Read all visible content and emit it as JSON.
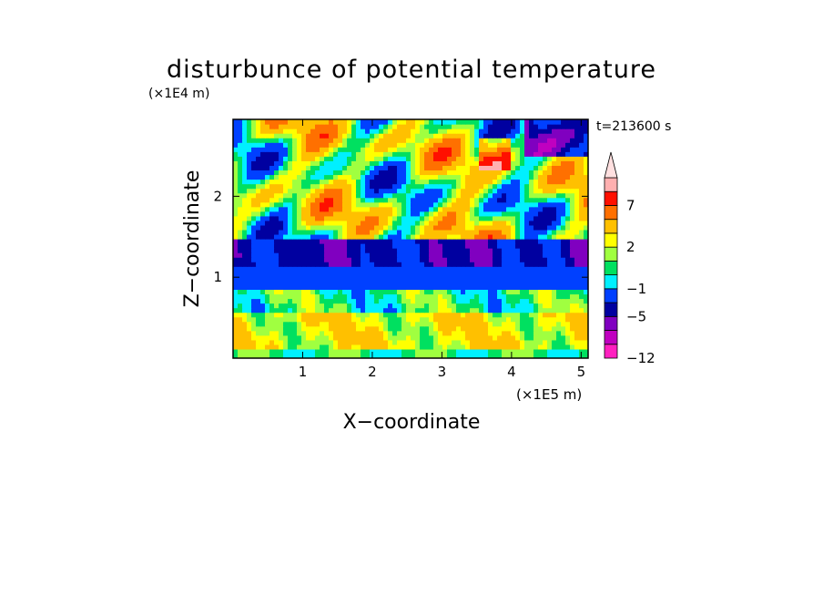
{
  "chart_data": {
    "type": "heatmap",
    "title": "disturbunce of potential temperature",
    "time_label": "t=213600 s",
    "xlabel": "X−coordinate",
    "ylabel": "Z−coordinate",
    "x_unit": "(×1E5 m)",
    "y_unit": "(×1E4 m)",
    "xlim": [
      0,
      5.1
    ],
    "ylim": [
      0,
      2.95
    ],
    "x_ticks": [
      {
        "value": 1,
        "label": "1"
      },
      {
        "value": 2,
        "label": "2"
      },
      {
        "value": 3,
        "label": "3"
      },
      {
        "value": 4,
        "label": "4"
      },
      {
        "value": 5,
        "label": "5"
      }
    ],
    "y_ticks": [
      {
        "value": 1,
        "label": "1"
      },
      {
        "value": 2,
        "label": "2"
      }
    ],
    "colorbar": {
      "levels": [
        -12,
        -9,
        -7,
        -5,
        -3,
        -1,
        0,
        1,
        2,
        3,
        5,
        7,
        9,
        11
      ],
      "colors": [
        "#ff20c0",
        "#c000c0",
        "#8000c0",
        "#0000a0",
        "#0040ff",
        "#00f0ff",
        "#00e060",
        "#a0ff40",
        "#ffff00",
        "#ffc000",
        "#ff7000",
        "#ff1000",
        "#ffb0b0"
      ],
      "extend_color": "#ffe0e0",
      "tick_labels": [
        {
          "value": -12,
          "label": "−12"
        },
        {
          "value": -5,
          "label": "−5"
        },
        {
          "value": -1,
          "label": "−1"
        },
        {
          "value": 2,
          "label": "2"
        },
        {
          "value": 7,
          "label": "7"
        }
      ]
    },
    "layers": [
      {
        "name": "surface",
        "z": [
          0,
          0.12
        ],
        "value": 0.5
      },
      {
        "name": "lower-yellow",
        "z": [
          0.12,
          0.55
        ],
        "value": 2.5
      },
      {
        "name": "green-band",
        "z": [
          0.55,
          0.85
        ],
        "value": 0.5
      },
      {
        "name": "cyan-band",
        "z": [
          0.85,
          1.15
        ],
        "value": -2
      },
      {
        "name": "blue-band",
        "z": [
          1.15,
          1.45
        ],
        "value": -4
      },
      {
        "name": "upper-mixed",
        "z": [
          1.45,
          2.95
        ],
        "value": 1.5
      }
    ]
  }
}
